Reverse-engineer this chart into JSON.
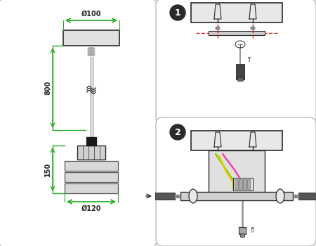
{
  "bg_color": "#f0f0f0",
  "panel_bg": "#ffffff",
  "green_color": "#22aa22",
  "dark_color": "#2a2a2a",
  "gray_color": "#999999",
  "light_gray": "#bbbbbb",
  "mid_gray": "#cccccc",
  "red_color": "#dd2222",
  "label_800": "800",
  "label_150": "150",
  "label_d100": "Ø100",
  "label_d120": "Ø120",
  "wire_green": "#88cc00",
  "wire_pink": "#ee44aa",
  "wire_yellow": "#ddcc00",
  "wire_white": "#cccccc"
}
